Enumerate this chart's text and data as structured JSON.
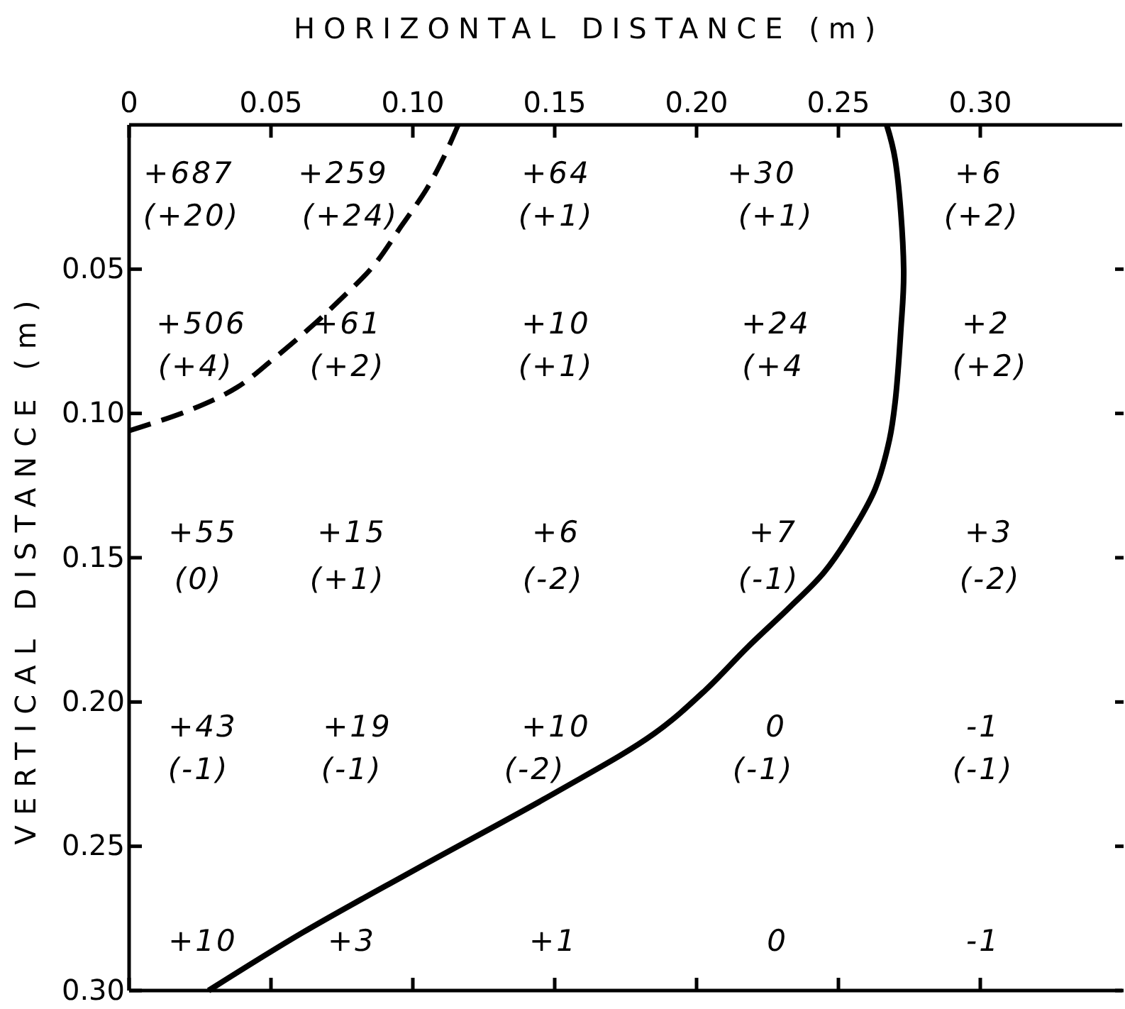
{
  "chart_data": {
    "type": "line",
    "xlabel": "HORIZONTAL DISTANCE (m)",
    "ylabel": "VERTICAL DISTANCE (m)",
    "xlim": [
      0,
      0.35
    ],
    "ylim": [
      0.3,
      0
    ],
    "xticks": [
      0,
      0.05,
      {
        "value": 0.1,
        "label": "0.10"
      },
      0.15,
      {
        "value": 0.2,
        "label": "0.20"
      },
      0.25,
      {
        "value": 0.3,
        "label": "0.30"
      }
    ],
    "yticks": [
      0.05,
      {
        "value": 0.1,
        "label": "0.10"
      },
      0.15,
      {
        "value": 0.2,
        "label": "0.20"
      },
      0.25,
      {
        "value": 0.3,
        "label": "0.30"
      }
    ],
    "series": [
      {
        "color": "#000000",
        "line_style": "dashed",
        "x": [
          0,
          0.021,
          0.038,
          0.051,
          0.063,
          0.075,
          0.086,
          0.096,
          0.105,
          0.111,
          0.116
        ],
        "values": [
          0.106,
          0.099,
          0.091,
          0.081,
          0.071,
          0.06,
          0.049,
          0.035,
          0.022,
          0.011,
          0
        ]
      },
      {
        "color": "#000000",
        "line_style": "solid",
        "x": [
          0.028,
          0.061,
          0.101,
          0.151,
          0.185,
          0.203,
          0.218,
          0.233,
          0.245,
          0.256,
          0.263,
          0.268,
          0.27,
          0.272,
          0.273,
          0.27,
          0.267
        ],
        "values": [
          0.3,
          0.28,
          0.258,
          0.231,
          0.211,
          0.196,
          0.181,
          0.167,
          0.155,
          0.139,
          0.126,
          0.109,
          0.096,
          0.071,
          0.05,
          0.012,
          0
        ]
      }
    ],
    "annotations": [
      "+687",
      "+259",
      "+64",
      "+30",
      "+6",
      "(+20)",
      "(+24)",
      "(+1)",
      "(+1)",
      "(+2)",
      "+506",
      "+61",
      "+10",
      "+24",
      "+2",
      "(+4)",
      "(+2)",
      "(+1)",
      "(+4",
      "(+2)",
      "+55",
      "+15",
      "+6",
      "+7",
      "+3",
      "(0)",
      "(+1)",
      "(-2)",
      "(-1)",
      "(-2)",
      "+43",
      "+19",
      "+10",
      "0",
      "-1",
      "(-1)",
      "(-1)",
      "(-2)",
      "(-1)",
      "(-1)",
      "+10",
      "+3",
      "+1",
      "0",
      "-1"
    ]
  }
}
